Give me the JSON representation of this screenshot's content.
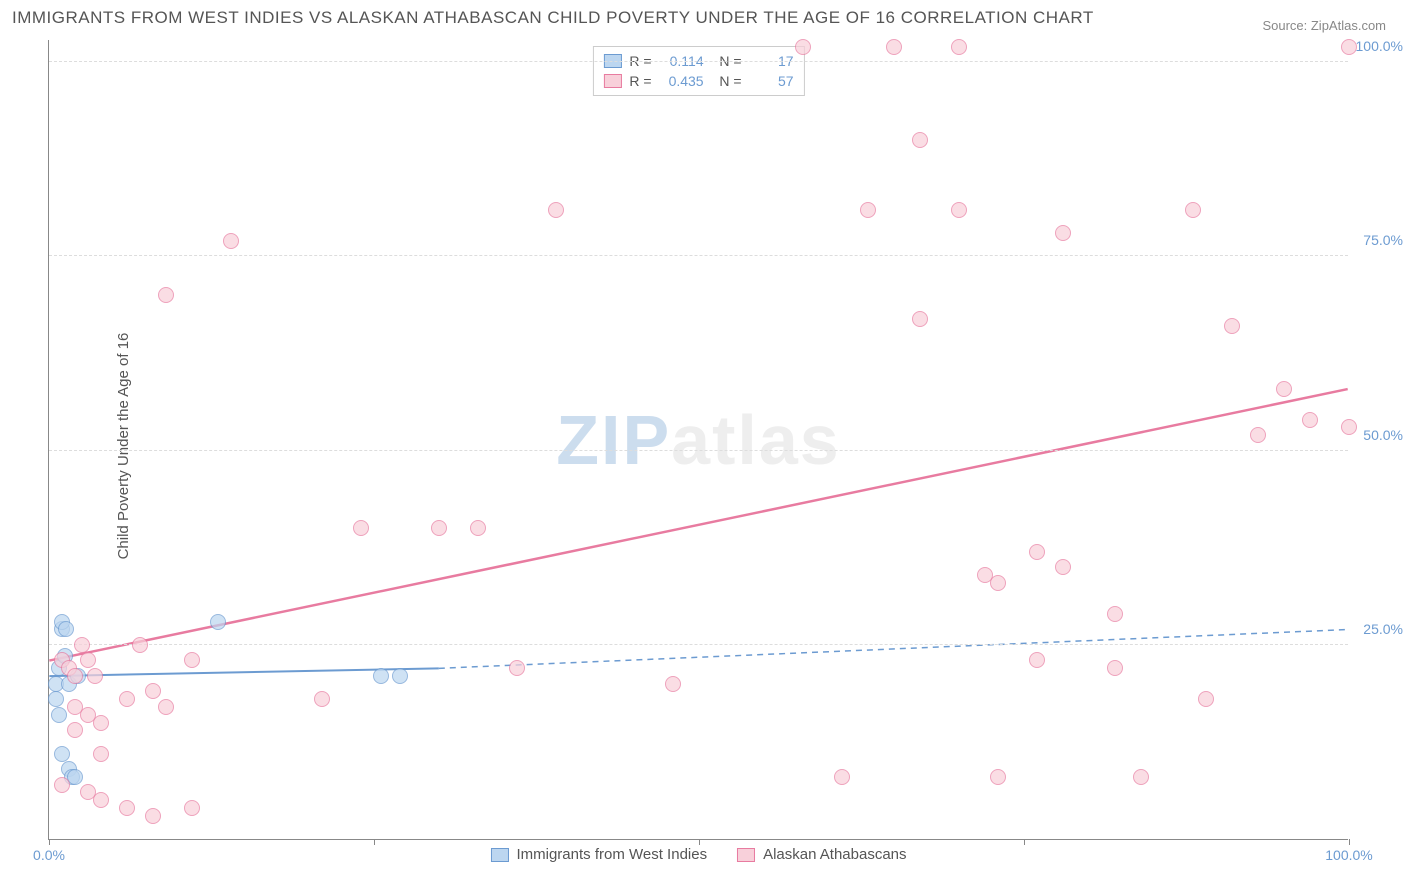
{
  "title": "IMMIGRANTS FROM WEST INDIES VS ALASKAN ATHABASCAN CHILD POVERTY UNDER THE AGE OF 16 CORRELATION CHART",
  "source": "Source: ZipAtlas.com",
  "ylabel": "Child Poverty Under the Age of 16",
  "watermark": "ZIPatlas",
  "chart": {
    "type": "scatter",
    "xlim": [
      0,
      100
    ],
    "ylim": [
      0,
      103
    ],
    "xticks": [
      0,
      25,
      50,
      75,
      100
    ],
    "yticks": [
      25,
      50,
      75,
      100
    ],
    "xtick_labels": [
      "0.0%",
      "",
      "",
      "",
      "100.0%"
    ],
    "ytick_labels": [
      "25.0%",
      "50.0%",
      "75.0%",
      "100.0%"
    ],
    "background_color": "#ffffff",
    "grid_color": "#dddddd",
    "axis_color": "#888888",
    "tick_label_color": "#6c9bd1",
    "marker_size": 16,
    "marker_opacity": 0.7
  },
  "series": [
    {
      "name": "Immigrants from West Indies",
      "color_fill": "#bcd6f0",
      "color_border": "#6c9bd1",
      "R": "0.114",
      "N": "17",
      "trend": {
        "x1": 0,
        "y1": 21,
        "x2": 30,
        "y2": 22,
        "dash_x2": 100,
        "dash_y2": 27,
        "width": 2
      },
      "points": [
        [
          0.5,
          20
        ],
        [
          0.8,
          22
        ],
        [
          1,
          27
        ],
        [
          1,
          28
        ],
        [
          1.2,
          23.5
        ],
        [
          1.3,
          27
        ],
        [
          0.5,
          18
        ],
        [
          0.8,
          16
        ],
        [
          1,
          11
        ],
        [
          1.5,
          9
        ],
        [
          1.8,
          8
        ],
        [
          2,
          8
        ],
        [
          1.5,
          20
        ],
        [
          2.2,
          21
        ],
        [
          13,
          28
        ],
        [
          25.5,
          21
        ],
        [
          27,
          21
        ]
      ]
    },
    {
      "name": "Alaskan Athabascans",
      "color_fill": "#f8d0da",
      "color_border": "#e87ba0",
      "R": "0.435",
      "N": "57",
      "trend": {
        "x1": 0,
        "y1": 23,
        "x2": 100,
        "y2": 58,
        "width": 2.5
      },
      "points": [
        [
          1,
          23
        ],
        [
          1.5,
          22
        ],
        [
          2,
          21
        ],
        [
          2.5,
          25
        ],
        [
          3,
          23
        ],
        [
          3.5,
          21
        ],
        [
          2,
          17
        ],
        [
          3,
          16
        ],
        [
          4,
          15
        ],
        [
          2,
          14
        ],
        [
          4,
          11
        ],
        [
          1,
          7
        ],
        [
          3,
          6
        ],
        [
          4,
          5
        ],
        [
          6,
          4
        ],
        [
          8,
          3
        ],
        [
          11,
          4
        ],
        [
          6,
          18
        ],
        [
          7,
          25
        ],
        [
          8,
          19
        ],
        [
          9,
          17
        ],
        [
          9,
          70
        ],
        [
          11,
          23
        ],
        [
          14,
          77
        ],
        [
          21,
          18
        ],
        [
          24,
          40
        ],
        [
          30,
          40
        ],
        [
          33,
          40
        ],
        [
          36,
          22
        ],
        [
          39,
          81
        ],
        [
          48,
          20
        ],
        [
          58,
          102
        ],
        [
          61,
          8
        ],
        [
          63,
          81
        ],
        [
          65,
          102
        ],
        [
          67,
          90
        ],
        [
          67,
          67
        ],
        [
          70,
          81
        ],
        [
          70,
          102
        ],
        [
          72,
          34
        ],
        [
          73,
          33
        ],
        [
          73,
          8
        ],
        [
          76,
          37
        ],
        [
          76,
          23
        ],
        [
          78,
          35
        ],
        [
          78,
          78
        ],
        [
          82,
          22
        ],
        [
          82,
          29
        ],
        [
          84,
          8
        ],
        [
          88,
          81
        ],
        [
          89,
          18
        ],
        [
          91,
          66
        ],
        [
          93,
          52
        ],
        [
          95,
          58
        ],
        [
          97,
          54
        ],
        [
          100,
          102
        ],
        [
          100,
          53
        ]
      ]
    }
  ]
}
